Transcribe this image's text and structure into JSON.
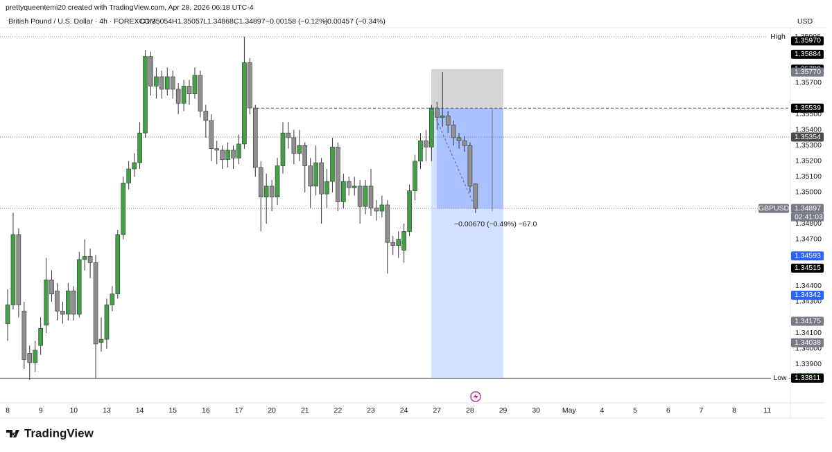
{
  "header": {
    "attribution": "prettyqueentemi20 created with TradingView.com, Apr 28, 2026 06:18 UTC-4",
    "symbol": "British Pound / U.S. Dollar · 4h · FOREXCOM",
    "open": "O1.35054",
    "high": "H1.35057",
    "low": "L1.34868",
    "close": "C1.34897",
    "change": "−0.00158 (−0.12%)",
    "change2": "−0.00457 (−0.34%)",
    "currency": "USD"
  },
  "chart_data": {
    "type": "candlestick",
    "up_color": "#43a047",
    "down_color": "#8f8f8f",
    "xlim": [
      -0.38,
      142.2
    ],
    "ylim": [
      1.33653,
      1.36054
    ],
    "xticks": [
      {
        "value": 0,
        "label": "8"
      },
      {
        "value": 6,
        "label": "9"
      },
      {
        "value": 12,
        "label": "10"
      },
      {
        "value": 18,
        "label": "13"
      },
      {
        "value": 24,
        "label": "14"
      },
      {
        "value": 30,
        "label": "15"
      },
      {
        "value": 36,
        "label": "16"
      },
      {
        "value": 42,
        "label": "17"
      },
      {
        "value": 48,
        "label": "20"
      },
      {
        "value": 54,
        "label": "21"
      },
      {
        "value": 60,
        "label": "22"
      },
      {
        "value": 66,
        "label": "23"
      },
      {
        "value": 72,
        "label": "24"
      },
      {
        "value": 78,
        "label": "27"
      },
      {
        "value": 84,
        "label": "28"
      },
      {
        "value": 90,
        "label": "29"
      },
      {
        "value": 96,
        "label": "30"
      },
      {
        "value": 102,
        "label": "May"
      },
      {
        "value": 108,
        "label": "4"
      },
      {
        "value": 114,
        "label": "5"
      },
      {
        "value": 120,
        "label": "6"
      },
      {
        "value": 126,
        "label": "7"
      },
      {
        "value": 132,
        "label": "8"
      },
      {
        "value": 138,
        "label": "11"
      }
    ],
    "yticks": [
      {
        "value": 1.357,
        "label": "1.35700"
      },
      {
        "value": 1.355,
        "label": "1.35500"
      },
      {
        "value": 1.354,
        "label": "1.35400"
      },
      {
        "value": 1.353,
        "label": "1.35300"
      },
      {
        "value": 1.352,
        "label": "1.35200"
      },
      {
        "value": 1.351,
        "label": "1.35100"
      },
      {
        "value": 1.35,
        "label": "1.35000"
      },
      {
        "value": 1.348,
        "label": "1.34800"
      },
      {
        "value": 1.347,
        "label": "1.34700"
      },
      {
        "value": 1.344,
        "label": "1.34400"
      },
      {
        "value": 1.343,
        "label": "1.34300"
      },
      {
        "value": 1.341,
        "label": "1.34100"
      },
      {
        "value": 1.34,
        "label": "1.34000"
      },
      {
        "value": 1.339,
        "label": "1.33900"
      }
    ],
    "open": [
      1.3416,
      1.3428,
      1.3473,
      1.3424,
      1.3397,
      1.3391,
      1.3402,
      1.3415,
      1.3444,
      1.3437,
      1.3424,
      1.3422,
      1.3437,
      1.3422,
      1.3457,
      1.3459,
      1.3455,
      1.3404,
      1.3406,
      1.3428,
      1.3435,
      1.3473,
      1.3506,
      1.3515,
      1.3519,
      1.3538,
      1.3587,
      1.3568,
      1.3574,
      1.3566,
      1.3574,
      1.3566,
      1.3557,
      1.3568,
      1.3563,
      1.3575,
      1.3552,
      1.3546,
      1.3528,
      1.3527,
      1.3521,
      1.3527,
      1.3522,
      1.3531,
      1.3583,
      1.3554,
      1.3516,
      1.3497,
      1.3504,
      1.3497,
      1.3517,
      1.3538,
      1.3535,
      1.3525,
      1.353,
      1.3517,
      1.3504,
      1.3519,
      1.3499,
      1.3507,
      1.3529,
      1.3494,
      1.3507,
      1.3503,
      1.3504,
      1.3491,
      1.3504,
      1.349,
      1.3488,
      1.3492,
      1.3468,
      1.3466,
      1.3463,
      1.3475,
      1.3501,
      1.352,
      1.3533,
      1.3529,
      1.3554,
      1.3548,
      1.3549,
      1.3543,
      1.3535,
      1.3533,
      1.353,
      1.35054
    ],
    "high": [
      1.3438,
      1.3487,
      1.3477,
      1.343,
      1.3402,
      1.3405,
      1.342,
      1.3458,
      1.345,
      1.3442,
      1.343,
      1.3442,
      1.344,
      1.3462,
      1.347,
      1.3464,
      1.346,
      1.342,
      1.3432,
      1.344,
      1.3476,
      1.351,
      1.352,
      1.3525,
      1.3545,
      1.3591,
      1.359,
      1.358,
      1.3578,
      1.358,
      1.3578,
      1.357,
      1.3572,
      1.3572,
      1.358,
      1.3578,
      1.3556,
      1.355,
      1.3533,
      1.353,
      1.3532,
      1.353,
      1.3537,
      1.35996,
      1.3586,
      1.3556,
      1.352,
      1.3512,
      1.3508,
      1.3522,
      1.3545,
      1.3545,
      1.354,
      1.354,
      1.3532,
      1.3522,
      1.353,
      1.3522,
      1.3515,
      1.3535,
      1.3532,
      1.3512,
      1.351,
      1.351,
      1.3508,
      1.3508,
      1.3515,
      1.3495,
      1.3498,
      1.3495,
      1.3472,
      1.3475,
      1.348,
      1.3505,
      1.3524,
      1.3538,
      1.354,
      1.3556,
      1.3558,
      1.3577,
      1.3552,
      1.3546,
      1.3538,
      1.3536,
      1.3532,
      1.35057
    ],
    "low": [
      1.3405,
      1.3425,
      1.342,
      1.3387,
      1.338,
      1.3385,
      1.3396,
      1.341,
      1.343,
      1.3418,
      1.3416,
      1.3418,
      1.3418,
      1.342,
      1.345,
      1.3445,
      1.33811,
      1.3398,
      1.34,
      1.3424,
      1.3432,
      1.347,
      1.3502,
      1.351,
      1.3515,
      1.3535,
      1.3562,
      1.356,
      1.356,
      1.3562,
      1.356,
      1.355,
      1.3552,
      1.3556,
      1.356,
      1.3548,
      1.3535,
      1.352,
      1.3518,
      1.3515,
      1.3516,
      1.3515,
      1.3518,
      1.3528,
      1.355,
      1.351,
      1.3475,
      1.348,
      1.3488,
      1.3492,
      1.3512,
      1.3528,
      1.3518,
      1.352,
      1.35,
      1.349,
      1.3498,
      1.348,
      1.349,
      1.35,
      1.3488,
      1.349,
      1.3498,
      1.3498,
      1.348,
      1.3486,
      1.3485,
      1.3482,
      1.3484,
      1.3448,
      1.346,
      1.3458,
      1.3455,
      1.3472,
      1.3495,
      1.3515,
      1.352,
      1.352,
      1.354,
      1.3542,
      1.3538,
      1.353,
      1.3528,
      1.3526,
      1.35,
      1.34868
    ],
    "close": [
      1.3428,
      1.3473,
      1.3428,
      1.3393,
      1.3391,
      1.3399,
      1.3413,
      1.3444,
      1.3435,
      1.3424,
      1.3422,
      1.3437,
      1.3422,
      1.3457,
      1.3459,
      1.3455,
      1.3403,
      1.3406,
      1.3428,
      1.3435,
      1.3473,
      1.3506,
      1.3515,
      1.3519,
      1.3538,
      1.3587,
      1.3568,
      1.3574,
      1.3566,
      1.3574,
      1.3566,
      1.3557,
      1.3568,
      1.3563,
      1.3575,
      1.3552,
      1.3546,
      1.3528,
      1.3527,
      1.3521,
      1.3527,
      1.3522,
      1.3531,
      1.3583,
      1.3554,
      1.3516,
      1.3497,
      1.3504,
      1.3497,
      1.3517,
      1.3538,
      1.3535,
      1.3525,
      1.353,
      1.3517,
      1.3504,
      1.3519,
      1.3499,
      1.3507,
      1.3529,
      1.3494,
      1.3507,
      1.3503,
      1.3504,
      1.3491,
      1.3504,
      1.349,
      1.3488,
      1.3492,
      1.3468,
      1.3466,
      1.347,
      1.3475,
      1.3501,
      1.352,
      1.3533,
      1.3529,
      1.3554,
      1.3548,
      1.3549,
      1.3543,
      1.3535,
      1.3533,
      1.353,
      1.3504,
      1.34897
    ],
    "price_tags": [
      {
        "value": 1.35996,
        "label": "1.35996",
        "color": "#ffffff",
        "side_label": "High"
      },
      {
        "value": 1.3597,
        "label": "1.35970",
        "color": "#000000"
      },
      {
        "value": 1.35884,
        "label": "1.35884",
        "color": "#000000"
      },
      {
        "value": 1.35789,
        "label": "1.35789",
        "color": "#000000"
      },
      {
        "value": 1.3577,
        "label": "1.35770",
        "color": "#787b86"
      },
      {
        "value": 1.35539,
        "label": "1.35539",
        "color": "#787b86"
      },
      {
        "value": 1.35539,
        "label": "1.35539",
        "color": "#000000"
      },
      {
        "value": 1.35354,
        "label": "1.35354",
        "color": "#4a4a4a"
      },
      {
        "value": 1.34897,
        "label": "1.34897",
        "color": "#787b86",
        "side_label": "GBPUSD",
        "sub_label": "02:41:03"
      },
      {
        "value": 1.34593,
        "label": "1.34593",
        "color": "#2962ff"
      },
      {
        "value": 1.34515,
        "label": "1.34515",
        "color": "#000000"
      },
      {
        "value": 1.34342,
        "label": "1.34342",
        "color": "#2962ff"
      },
      {
        "value": 1.34175,
        "label": "1.34175",
        "color": "#787b86"
      },
      {
        "value": 1.34038,
        "label": "1.34038",
        "color": "#787b86"
      },
      {
        "value": 1.33814,
        "label": "1.33814",
        "color": "#2962ff"
      },
      {
        "value": 1.33811,
        "label": "1.33811",
        "color": "#ffffff",
        "side_label": "Low"
      },
      {
        "value": 1.33811,
        "label": "1.33811",
        "color": "#000000"
      }
    ],
    "measure_label": "−0.00670 (−0.49%) −67.0"
  },
  "footer": {
    "logo": "TradingView"
  }
}
